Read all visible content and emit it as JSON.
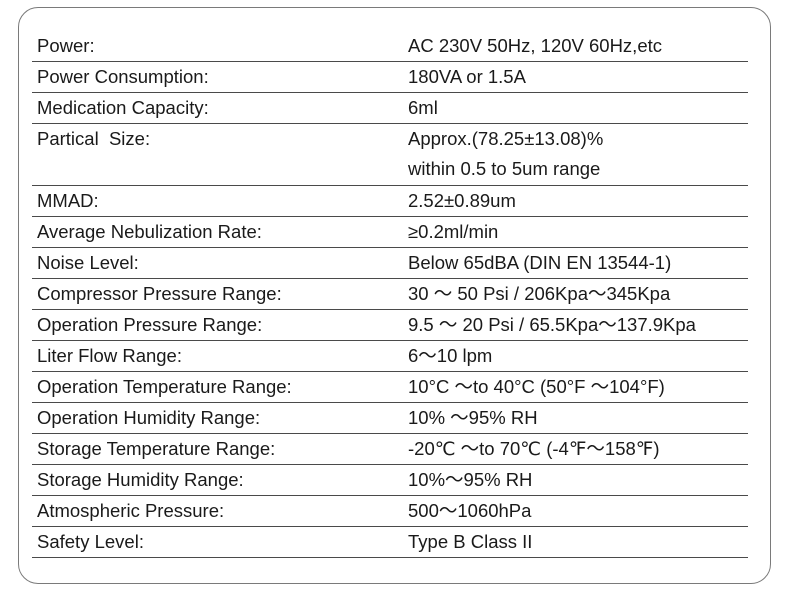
{
  "specs": [
    {
      "label": "Power:",
      "value": [
        "AC 230V 50Hz, 120V 60Hz,etc"
      ]
    },
    {
      "label": "Power Consumption:",
      "value": [
        "180VA or 1.5A"
      ]
    },
    {
      "label": "Medication Capacity:",
      "value": [
        "6ml"
      ]
    },
    {
      "label": "Partical  Size:",
      "value": [
        "Approx.(78.25±13.08)%",
        "within 0.5 to 5um range"
      ]
    },
    {
      "label": "MMAD:",
      "value": [
        "2.52±0.89um"
      ]
    },
    {
      "label": "Average Nebulization Rate:",
      "value": [
        "≥0.2ml/min"
      ]
    },
    {
      "label": "Noise Level:",
      "value": [
        "Below 65dBA (DIN EN 13544-1)"
      ]
    },
    {
      "label": "Compressor Pressure Range:",
      "value": [
        "30 ～ 50 Psi / 206Kpa～345Kpa"
      ]
    },
    {
      "label": "Operation Pressure Range:",
      "value": [
        "9.5 ～ 20 Psi / 65.5Kpa～137.9Kpa"
      ]
    },
    {
      "label": "Liter Flow Range:",
      "value": [
        "6～10 lpm"
      ]
    },
    {
      "label": "Operation Temperature Range:",
      "value": [
        "10°C ～to 40°C (50°F ～104°F)"
      ]
    },
    {
      "label": "Operation Humidity Range:",
      "value": [
        "10% ～95% RH"
      ]
    },
    {
      "label": "Storage Temperature Range:",
      "value": [
        "-20℃ ～to 70℃ (-4℉～158℉)"
      ]
    },
    {
      "label": "Storage Humidity Range:",
      "value": [
        "10%～95% RH"
      ]
    },
    {
      "label": "Atmospheric Pressure:",
      "value": [
        "500～1060hPa"
      ]
    },
    {
      "label": "Safety Level:",
      "value": [
        "Type B Class II"
      ]
    }
  ]
}
